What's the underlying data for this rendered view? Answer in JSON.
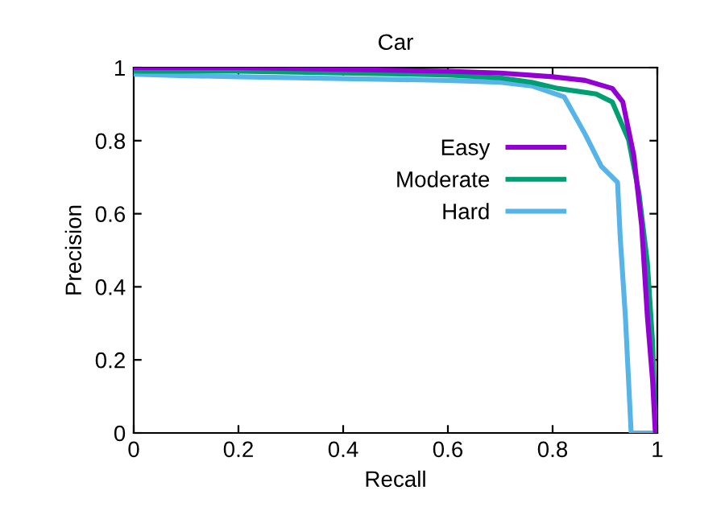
{
  "chart_data": {
    "type": "line",
    "title": "Car",
    "xlabel": "Recall",
    "ylabel": "Precision",
    "xlim": [
      0,
      1
    ],
    "ylim": [
      0,
      1
    ],
    "xticks": [
      0,
      0.2,
      0.4,
      0.6,
      0.8,
      1
    ],
    "yticks": [
      0,
      0.2,
      0.4,
      0.6,
      0.8,
      1
    ],
    "grid": false,
    "legend": "top right",
    "marker": "none",
    "line_style": "solid",
    "series": [
      {
        "name": "Easy",
        "color": "#9400d3",
        "x": [
          0,
          0.2,
          0.4,
          0.6,
          0.7,
          0.8,
          0.862,
          0.914,
          0.934,
          0.955,
          0.97,
          0.981,
          0.991,
          0.996,
          1
        ],
        "values": [
          1,
          1,
          0.995,
          0.99,
          0.985,
          0.975,
          0.965,
          0.943,
          0.906,
          0.76,
          0.568,
          0.318,
          0.142,
          0.005,
          0
        ]
      },
      {
        "name": "Moderate",
        "color": "#009e73",
        "x": [
          0,
          0.2,
          0.4,
          0.6,
          0.7,
          0.76,
          0.81,
          0.883,
          0.914,
          0.945,
          0.965,
          0.981,
          0.991,
          0.996,
          1
        ],
        "values": [
          0.99,
          0.99,
          0.985,
          0.98,
          0.972,
          0.96,
          0.943,
          0.928,
          0.906,
          0.803,
          0.656,
          0.466,
          0.246,
          0.026,
          0
        ]
      },
      {
        "name": "Hard",
        "color": "#56b4e9",
        "x": [
          0,
          0.088,
          0.2,
          0.4,
          0.6,
          0.7,
          0.76,
          0.822,
          0.862,
          0.893,
          0.924,
          0.929,
          0.939,
          0.95,
          1
        ],
        "values": [
          0.982,
          0.978,
          0.975,
          0.97,
          0.965,
          0.96,
          0.95,
          0.92,
          0.818,
          0.73,
          0.686,
          0.539,
          0.318,
          0,
          0
        ]
      }
    ]
  }
}
